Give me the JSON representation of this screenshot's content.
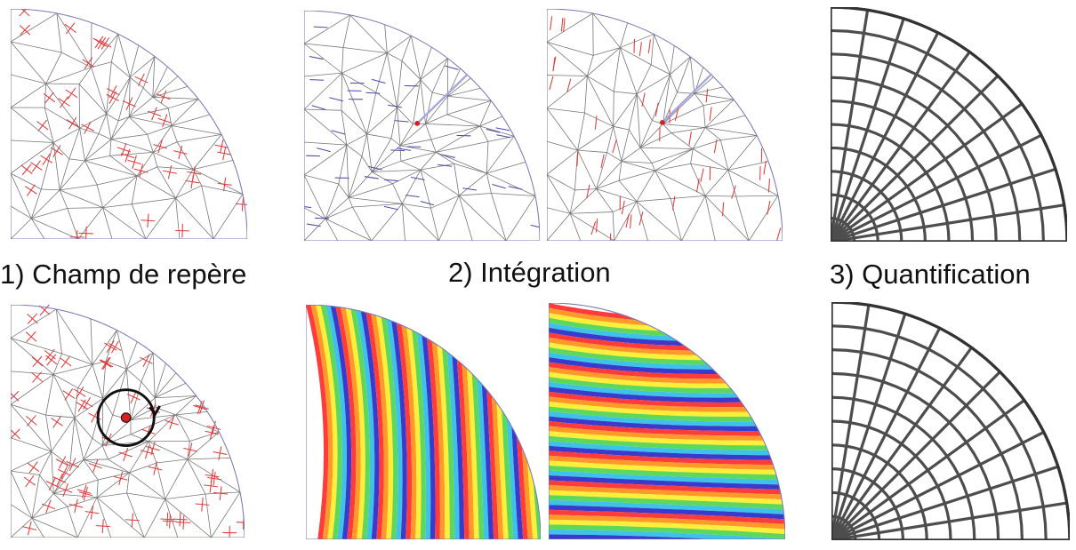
{
  "labels": {
    "step1": "1) Champ de repère",
    "step2": "2) Intégration",
    "step3": "3) Quantification"
  },
  "colors": {
    "mesh_edge": "#777777",
    "boundary": "#7a7ab8",
    "cross_field": "#e23b3b",
    "param_lines": "#4a4aa8",
    "singularity": "#d82020",
    "quad_edge": "#4d4d4d"
  }
}
